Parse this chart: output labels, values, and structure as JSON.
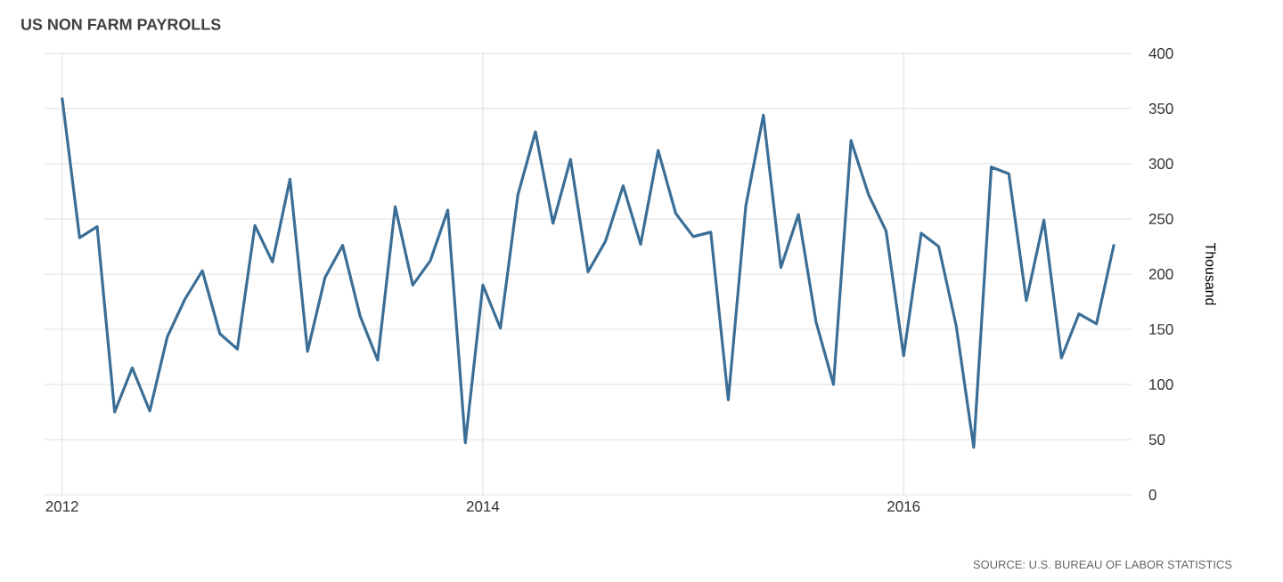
{
  "chart_data": {
    "type": "line",
    "title": "US NON FARM PAYROLLS",
    "ylabel": "Thousand",
    "annotations": [
      "SOURCE: U.S. BUREAU OF LABOR STATISTICS"
    ],
    "x": [
      "2012-01",
      "2012-02",
      "2012-03",
      "2012-04",
      "2012-05",
      "2012-06",
      "2012-07",
      "2012-08",
      "2012-09",
      "2012-10",
      "2012-11",
      "2012-12",
      "2013-01",
      "2013-02",
      "2013-03",
      "2013-04",
      "2013-05",
      "2013-06",
      "2013-07",
      "2013-08",
      "2013-09",
      "2013-10",
      "2013-11",
      "2013-12",
      "2014-01",
      "2014-02",
      "2014-03",
      "2014-04",
      "2014-05",
      "2014-06",
      "2014-07",
      "2014-08",
      "2014-09",
      "2014-10",
      "2014-11",
      "2014-12",
      "2015-01",
      "2015-02",
      "2015-03",
      "2015-04",
      "2015-05",
      "2015-06",
      "2015-07",
      "2015-08",
      "2015-09",
      "2015-10",
      "2015-11",
      "2015-12",
      "2016-01",
      "2016-02",
      "2016-03",
      "2016-04",
      "2016-05",
      "2016-06",
      "2016-07",
      "2016-08",
      "2016-09",
      "2016-10",
      "2016-11",
      "2016-12",
      "2017-01"
    ],
    "series": [
      {
        "color": "#3b6e96",
        "values": [
          360,
          233,
          243,
          75,
          115,
          76,
          143,
          177,
          203,
          146,
          132,
          244,
          211,
          286,
          130,
          197,
          226,
          162,
          122,
          261,
          190,
          212,
          258,
          47,
          190,
          151,
          272,
          329,
          246,
          304,
          202,
          230,
          280,
          227,
          312,
          255,
          234,
          238,
          86,
          262,
          344,
          206,
          254,
          157,
          100,
          321,
          272,
          239,
          126,
          237,
          225,
          153,
          43,
          297,
          291,
          176,
          249,
          124,
          164,
          155,
          227
        ]
      }
    ],
    "xlim": [
      "2011-12",
      "2017-02"
    ],
    "ylim": [
      0,
      400
    ],
    "xticks": [
      {
        "value": "2012-01",
        "label": "2012"
      },
      {
        "value": "2014-01",
        "label": "2014"
      },
      {
        "value": "2016-01",
        "label": "2016"
      }
    ],
    "yticks": [
      0,
      50,
      100,
      150,
      200,
      250,
      300,
      350,
      400
    ],
    "grid": true,
    "legend": false,
    "marker": "none",
    "line_style": "solid"
  }
}
